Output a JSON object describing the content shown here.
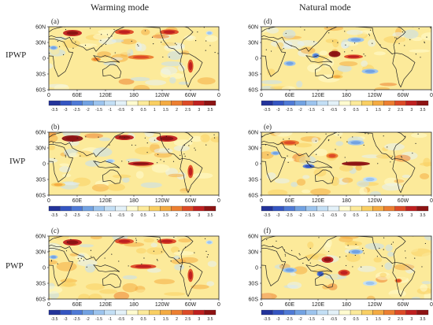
{
  "figure": {
    "column_titles": [
      "Warming mode",
      "Natural mode"
    ],
    "row_labels": [
      "IPWP",
      "IWP",
      "PWP"
    ]
  },
  "chart_data": [
    {
      "type": "heatmap",
      "panel": "(a)",
      "mode": "Warming mode",
      "row": "IPWP",
      "x_ticks": [
        "0",
        "60E",
        "120E",
        "180",
        "120W",
        "60W",
        "0"
      ],
      "y_ticks": [
        "60N",
        "30N",
        "0",
        "30S",
        "60S"
      ],
      "colorbar_ticks": [
        "-3.5",
        "-3",
        "-2.5",
        "-2",
        "-1.5",
        "-1",
        "-0.5",
        "0",
        "0.5",
        "1",
        "1.5",
        "2",
        "2.5",
        "3",
        "3.5"
      ],
      "pattern": [
        {
          "lon": 50,
          "lat": 48,
          "value": 3.0,
          "w": 40,
          "h": 12
        },
        {
          "lon": 160,
          "lat": 50,
          "value": 2.5,
          "w": 40,
          "h": 10
        },
        {
          "lon": 255,
          "lat": 50,
          "value": 2.5,
          "w": 40,
          "h": 10
        },
        {
          "lon": 10,
          "lat": 20,
          "value": -1.5,
          "w": 18,
          "h": 8
        },
        {
          "lon": 195,
          "lat": 2,
          "value": 2.0,
          "w": 55,
          "h": 9
        },
        {
          "lon": 300,
          "lat": -15,
          "value": 2.5,
          "w": 12,
          "h": 25
        },
        {
          "lon": 100,
          "lat": -2,
          "value": 1.5,
          "w": 20,
          "h": 8
        },
        {
          "lon": 340,
          "lat": 48,
          "value": -1.0,
          "w": 15,
          "h": 8
        }
      ]
    },
    {
      "type": "heatmap",
      "panel": "(b)",
      "mode": "Warming mode",
      "row": "IWP",
      "x_ticks": [
        "0",
        "60E",
        "120E",
        "180",
        "120W",
        "60W",
        "0"
      ],
      "y_ticks": [
        "60N",
        "30N",
        "0",
        "30S",
        "60S"
      ],
      "colorbar_ticks": [
        "-3.5",
        "-3",
        "-2.5",
        "-2",
        "-1.5",
        "-1",
        "-0.5",
        "0",
        "0.5",
        "1",
        "1.5",
        "2",
        "2.5",
        "3",
        "3.5"
      ],
      "pattern": [
        {
          "lon": 50,
          "lat": 48,
          "value": 3.5,
          "w": 45,
          "h": 12
        },
        {
          "lon": 160,
          "lat": 50,
          "value": 3.0,
          "w": 40,
          "h": 10
        },
        {
          "lon": 250,
          "lat": 48,
          "value": 3.0,
          "w": 45,
          "h": 12
        },
        {
          "lon": 195,
          "lat": 0,
          "value": 3.0,
          "w": 55,
          "h": 8
        },
        {
          "lon": 300,
          "lat": -15,
          "value": 2.5,
          "w": 12,
          "h": 25
        },
        {
          "lon": 130,
          "lat": 5,
          "value": -1.0,
          "w": 20,
          "h": 8
        },
        {
          "lon": 20,
          "lat": -40,
          "value": 1.0,
          "w": 30,
          "h": 8
        }
      ]
    },
    {
      "type": "heatmap",
      "panel": "(c)",
      "mode": "Warming mode",
      "row": "PWP",
      "x_ticks": [
        "0",
        "60E",
        "120E",
        "180",
        "120W",
        "60W",
        "0"
      ],
      "y_ticks": [
        "60N",
        "30N",
        "0",
        "30S",
        "60S"
      ],
      "colorbar_ticks": [
        "-3.5",
        "-3",
        "-2.5",
        "-2",
        "-1.5",
        "-1",
        "-0.5",
        "0",
        "0.5",
        "1",
        "1.5",
        "2",
        "2.5",
        "3",
        "3.5"
      ],
      "pattern": [
        {
          "lon": 50,
          "lat": 48,
          "value": 3.0,
          "w": 40,
          "h": 12
        },
        {
          "lon": 160,
          "lat": 50,
          "value": 2.5,
          "w": 40,
          "h": 10
        },
        {
          "lon": 250,
          "lat": 50,
          "value": 2.5,
          "w": 40,
          "h": 10
        },
        {
          "lon": 10,
          "lat": 20,
          "value": -1.5,
          "w": 18,
          "h": 8
        },
        {
          "lon": 200,
          "lat": 2,
          "value": 2.5,
          "w": 55,
          "h": 9
        },
        {
          "lon": 300,
          "lat": -15,
          "value": 2.5,
          "w": 12,
          "h": 25
        },
        {
          "lon": 340,
          "lat": 48,
          "value": -1.0,
          "w": 15,
          "h": 8
        }
      ]
    },
    {
      "type": "heatmap",
      "panel": "(d)",
      "mode": "Natural mode",
      "row": "IPWP",
      "x_ticks": [
        "0",
        "60E",
        "120E",
        "180",
        "120W",
        "60W",
        "0"
      ],
      "y_ticks": [
        "60N",
        "30N",
        "0",
        "30S",
        "60S"
      ],
      "colorbar_ticks": [
        "-3.5",
        "-3",
        "-2.5",
        "-2",
        "-1.5",
        "-1",
        "-0.5",
        "0",
        "0.5",
        "1",
        "1.5",
        "2",
        "2.5",
        "3",
        "3.5"
      ],
      "pattern": [
        {
          "lon": 155,
          "lat": 8,
          "value": 3.5,
          "w": 25,
          "h": 12
        },
        {
          "lon": 195,
          "lat": 3,
          "value": 2.5,
          "w": 40,
          "h": 8
        },
        {
          "lon": 115,
          "lat": 5,
          "value": -2.0,
          "w": 15,
          "h": 10
        },
        {
          "lon": 60,
          "lat": -10,
          "value": -1.5,
          "w": 25,
          "h": 10
        },
        {
          "lon": 200,
          "lat": 35,
          "value": -1.5,
          "w": 35,
          "h": 10
        },
        {
          "lon": 230,
          "lat": -25,
          "value": -1.5,
          "w": 35,
          "h": 10
        },
        {
          "lon": 160,
          "lat": -35,
          "value": 1.0,
          "w": 25,
          "h": 8
        }
      ]
    },
    {
      "type": "heatmap",
      "panel": "(e)",
      "mode": "Natural mode",
      "row": "IWP",
      "x_ticks": [
        "0",
        "60E",
        "120E",
        "180",
        "120W",
        "60W",
        "0"
      ],
      "y_ticks": [
        "60N",
        "30N",
        "0",
        "30S",
        "60S"
      ],
      "colorbar_ticks": [
        "-3.5",
        "-3",
        "-2.5",
        "-2",
        "-1.5",
        "-1",
        "-0.5",
        "0",
        "0.5",
        "1",
        "1.5",
        "2",
        "2.5",
        "3",
        "3.5"
      ],
      "pattern": [
        {
          "lon": 200,
          "lat": 0,
          "value": 3.5,
          "w": 60,
          "h": 8
        },
        {
          "lon": 150,
          "lat": 15,
          "value": 2.0,
          "w": 25,
          "h": 10
        },
        {
          "lon": 100,
          "lat": -5,
          "value": -2.5,
          "w": 25,
          "h": 8
        },
        {
          "lon": 60,
          "lat": 40,
          "value": 2.0,
          "w": 40,
          "h": 10
        },
        {
          "lon": 30,
          "lat": 20,
          "value": -1.5,
          "w": 20,
          "h": 8
        },
        {
          "lon": 200,
          "lat": 40,
          "value": -1.5,
          "w": 35,
          "h": 10
        },
        {
          "lon": 230,
          "lat": -30,
          "value": -1.0,
          "w": 30,
          "h": 10
        }
      ]
    },
    {
      "type": "heatmap",
      "panel": "(f)",
      "mode": "Natural mode",
      "row": "PWP",
      "x_ticks": [
        "0",
        "60E",
        "120E",
        "180",
        "120W",
        "60W",
        "0"
      ],
      "y_ticks": [
        "60N",
        "30N",
        "0",
        "30S",
        "60S"
      ],
      "colorbar_ticks": [
        "-3.5",
        "-3",
        "-2.5",
        "-2",
        "-1.5",
        "-1",
        "-0.5",
        "0",
        "0.5",
        "1",
        "1.5",
        "2",
        "2.5",
        "3",
        "3.5"
      ],
      "pattern": [
        {
          "lon": 140,
          "lat": 15,
          "value": 3.0,
          "w": 25,
          "h": 12
        },
        {
          "lon": 175,
          "lat": -10,
          "value": 2.5,
          "w": 25,
          "h": 12
        },
        {
          "lon": 125,
          "lat": -12,
          "value": -2.5,
          "w": 15,
          "h": 10
        },
        {
          "lon": 60,
          "lat": -5,
          "value": -1.5,
          "w": 30,
          "h": 10
        },
        {
          "lon": 200,
          "lat": 30,
          "value": -1.5,
          "w": 30,
          "h": 10
        },
        {
          "lon": 290,
          "lat": -25,
          "value": 2.0,
          "w": 15,
          "h": 8
        },
        {
          "lon": 230,
          "lat": -30,
          "value": -1.0,
          "w": 30,
          "h": 10
        }
      ]
    }
  ],
  "colorbar_colors": [
    "#23339a",
    "#3455c2",
    "#4f7ad6",
    "#72a2e2",
    "#9cc4ee",
    "#c3dff5",
    "#e3f1f8",
    "#fffbd0",
    "#fcea9a",
    "#f9cf63",
    "#f4ab42",
    "#ec7f31",
    "#dd4b27",
    "#bf2020",
    "#8d1313"
  ]
}
